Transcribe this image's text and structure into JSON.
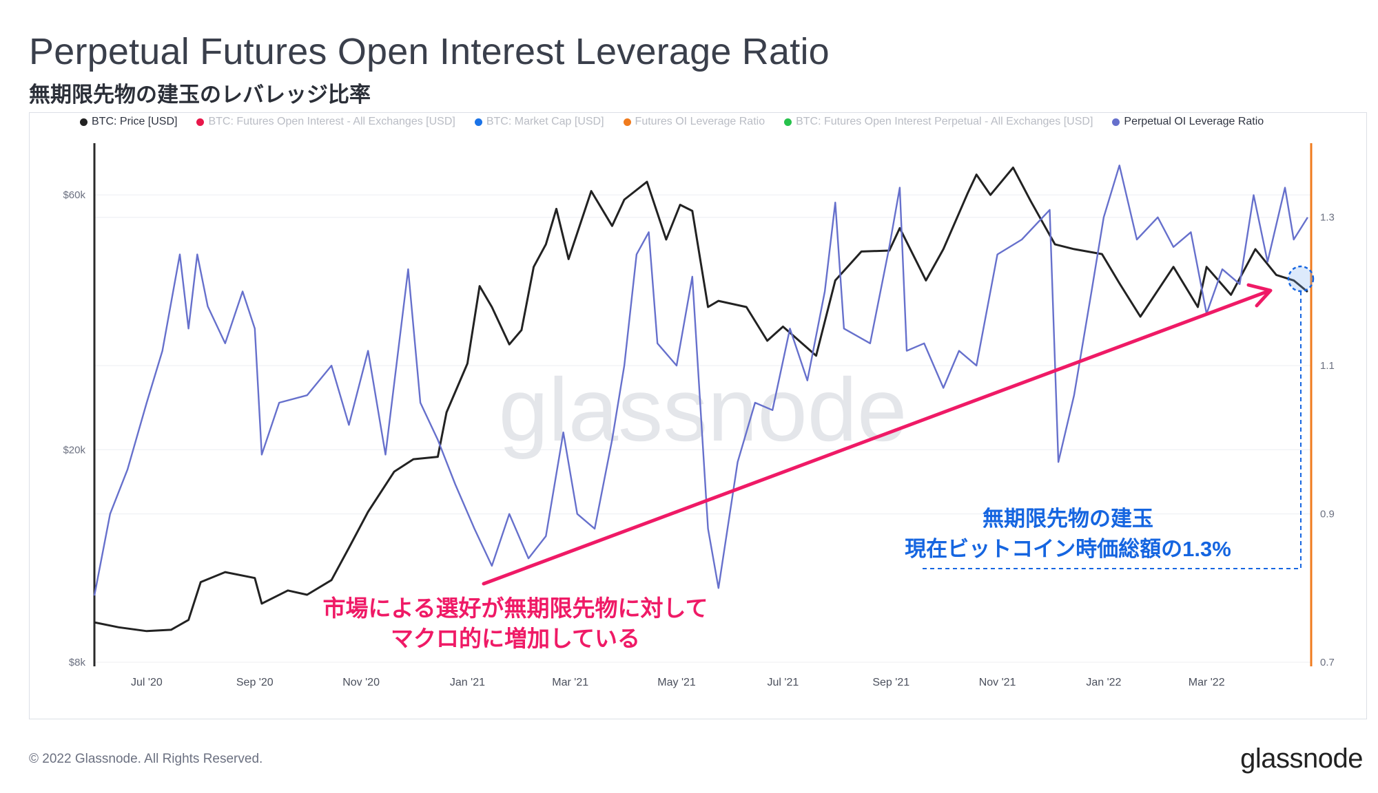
{
  "header": {
    "title": "Perpetual Futures Open Interest Leverage Ratio",
    "subtitle": "無期限先物の建玉のレバレッジ比率"
  },
  "legend": [
    {
      "label": "BTC: Price [USD]",
      "color": "#222222",
      "active": true
    },
    {
      "label": "BTC: Futures Open Interest - All Exchanges [USD]",
      "color": "#e8174a",
      "active": false
    },
    {
      "label": "BTC: Market Cap [USD]",
      "color": "#1a73e8",
      "active": false
    },
    {
      "label": "Futures OI Leverage Ratio",
      "color": "#f07b1d",
      "active": false
    },
    {
      "label": "BTC: Futures Open Interest Perpetual - All Exchanges [USD]",
      "color": "#27c24c",
      "active": false
    },
    {
      "label": "Perpetual OI Leverage Ratio",
      "color": "#6670cc",
      "active": true
    }
  ],
  "annotations": {
    "pink": [
      "市場による選好が無期限先物に対して",
      "マクロ的に増加している"
    ],
    "blue": [
      "無期限先物の建玉",
      "現在ビットコイン時価総額の1.3%"
    ],
    "pink_color": "#ef1a66",
    "blue_color": "#1565e0"
  },
  "footer": {
    "copyright": "© 2022 Glassnode. All Rights Reserved.",
    "logo": "glassnode",
    "watermark": "glassnode"
  },
  "chart_data": {
    "type": "line",
    "x_range": [
      "2020-06-01",
      "2022-04-30"
    ],
    "x_ticks": [
      {
        "date": "2020-07-01",
        "label": "Jul '20"
      },
      {
        "date": "2020-09-01",
        "label": "Sep '20"
      },
      {
        "date": "2020-11-01",
        "label": "Nov '20"
      },
      {
        "date": "2021-01-01",
        "label": "Jan '21"
      },
      {
        "date": "2021-03-01",
        "label": "Mar '21"
      },
      {
        "date": "2021-05-01",
        "label": "May '21"
      },
      {
        "date": "2021-07-01",
        "label": "Jul '21"
      },
      {
        "date": "2021-09-01",
        "label": "Sep '21"
      },
      {
        "date": "2021-11-01",
        "label": "Nov '21"
      },
      {
        "date": "2022-01-01",
        "label": "Jan '22"
      },
      {
        "date": "2022-03-01",
        "label": "Mar '22"
      }
    ],
    "y_left": {
      "scale": "log",
      "range": [
        8000,
        75000
      ],
      "ticks": [
        {
          "v": 8000,
          "label": "$8k"
        },
        {
          "v": 20000,
          "label": "$20k"
        },
        {
          "v": 60000,
          "label": "$60k"
        }
      ]
    },
    "y_right": {
      "scale": "linear",
      "range": [
        0.7,
        1.4
      ],
      "ticks": [
        {
          "v": 0.7,
          "label": "0.7"
        },
        {
          "v": 0.9,
          "label": "0.9"
        },
        {
          "v": 1.1,
          "label": "1.1"
        },
        {
          "v": 1.3,
          "label": "1.3"
        }
      ]
    },
    "grid": true,
    "series": [
      {
        "name": "BTC: Price [USD]",
        "axis": "left",
        "color": "#222222",
        "points": [
          [
            "2020-06-01",
            9500
          ],
          [
            "2020-06-15",
            9300
          ],
          [
            "2020-07-01",
            9150
          ],
          [
            "2020-07-15",
            9200
          ],
          [
            "2020-07-25",
            9600
          ],
          [
            "2020-08-01",
            11300
          ],
          [
            "2020-08-15",
            11800
          ],
          [
            "2020-09-01",
            11500
          ],
          [
            "2020-09-05",
            10300
          ],
          [
            "2020-09-20",
            10900
          ],
          [
            "2020-10-01",
            10700
          ],
          [
            "2020-10-15",
            11400
          ],
          [
            "2020-10-25",
            13100
          ],
          [
            "2020-11-05",
            15300
          ],
          [
            "2020-11-20",
            18200
          ],
          [
            "2020-12-01",
            19200
          ],
          [
            "2020-12-15",
            19400
          ],
          [
            "2020-12-20",
            23500
          ],
          [
            "2021-01-01",
            29000
          ],
          [
            "2021-01-08",
            40500
          ],
          [
            "2021-01-15",
            37000
          ],
          [
            "2021-01-25",
            31500
          ],
          [
            "2021-02-01",
            33500
          ],
          [
            "2021-02-08",
            44000
          ],
          [
            "2021-02-15",
            48500
          ],
          [
            "2021-02-21",
            56500
          ],
          [
            "2021-02-28",
            45500
          ],
          [
            "2021-03-13",
            61000
          ],
          [
            "2021-03-25",
            52500
          ],
          [
            "2021-04-01",
            58800
          ],
          [
            "2021-04-14",
            63500
          ],
          [
            "2021-04-25",
            49500
          ],
          [
            "2021-05-03",
            57500
          ],
          [
            "2021-05-10",
            56000
          ],
          [
            "2021-05-19",
            37000
          ],
          [
            "2021-05-25",
            38000
          ],
          [
            "2021-06-10",
            37000
          ],
          [
            "2021-06-22",
            32000
          ],
          [
            "2021-07-01",
            34000
          ],
          [
            "2021-07-20",
            30000
          ],
          [
            "2021-07-31",
            41500
          ],
          [
            "2021-08-15",
            47000
          ],
          [
            "2021-08-31",
            47200
          ],
          [
            "2021-09-06",
            52000
          ],
          [
            "2021-09-21",
            41500
          ],
          [
            "2021-10-01",
            47500
          ],
          [
            "2021-10-15",
            60500
          ],
          [
            "2021-10-20",
            65500
          ],
          [
            "2021-10-28",
            60000
          ],
          [
            "2021-11-10",
            67500
          ],
          [
            "2021-11-20",
            58500
          ],
          [
            "2021-12-04",
            48500
          ],
          [
            "2021-12-15",
            47500
          ],
          [
            "2021-12-31",
            46500
          ],
          [
            "2022-01-10",
            41000
          ],
          [
            "2022-01-22",
            35500
          ],
          [
            "2022-02-10",
            44000
          ],
          [
            "2022-02-24",
            37000
          ],
          [
            "2022-03-01",
            44000
          ],
          [
            "2022-03-15",
            39000
          ],
          [
            "2022-03-29",
            47500
          ],
          [
            "2022-04-10",
            42500
          ],
          [
            "2022-04-20",
            41500
          ],
          [
            "2022-04-28",
            39500
          ]
        ]
      },
      {
        "name": "Perpetual OI Leverage Ratio",
        "axis": "right",
        "color": "#6670cc",
        "points": [
          [
            "2020-06-01",
            0.79
          ],
          [
            "2020-06-10",
            0.9
          ],
          [
            "2020-06-20",
            0.96
          ],
          [
            "2020-07-01",
            1.05
          ],
          [
            "2020-07-10",
            1.12
          ],
          [
            "2020-07-20",
            1.25
          ],
          [
            "2020-07-25",
            1.15
          ],
          [
            "2020-07-30",
            1.25
          ],
          [
            "2020-08-05",
            1.18
          ],
          [
            "2020-08-15",
            1.13
          ],
          [
            "2020-08-25",
            1.2
          ],
          [
            "2020-09-01",
            1.15
          ],
          [
            "2020-09-05",
            0.98
          ],
          [
            "2020-09-15",
            1.05
          ],
          [
            "2020-10-01",
            1.06
          ],
          [
            "2020-10-15",
            1.1
          ],
          [
            "2020-10-25",
            1.02
          ],
          [
            "2020-11-05",
            1.12
          ],
          [
            "2020-11-15",
            0.98
          ],
          [
            "2020-11-28",
            1.23
          ],
          [
            "2020-12-05",
            1.05
          ],
          [
            "2020-12-15",
            1.0
          ],
          [
            "2020-12-25",
            0.94
          ],
          [
            "2021-01-05",
            0.88
          ],
          [
            "2021-01-15",
            0.83
          ],
          [
            "2021-01-25",
            0.9
          ],
          [
            "2021-02-05",
            0.84
          ],
          [
            "2021-02-15",
            0.87
          ],
          [
            "2021-02-25",
            1.01
          ],
          [
            "2021-03-05",
            0.9
          ],
          [
            "2021-03-15",
            0.88
          ],
          [
            "2021-03-25",
            1.0
          ],
          [
            "2021-04-01",
            1.1
          ],
          [
            "2021-04-08",
            1.25
          ],
          [
            "2021-04-15",
            1.28
          ],
          [
            "2021-04-20",
            1.13
          ],
          [
            "2021-05-01",
            1.1
          ],
          [
            "2021-05-10",
            1.22
          ],
          [
            "2021-05-19",
            0.88
          ],
          [
            "2021-05-25",
            0.8
          ],
          [
            "2021-06-05",
            0.97
          ],
          [
            "2021-06-15",
            1.05
          ],
          [
            "2021-06-25",
            1.04
          ],
          [
            "2021-07-05",
            1.15
          ],
          [
            "2021-07-15",
            1.08
          ],
          [
            "2021-07-25",
            1.2
          ],
          [
            "2021-07-31",
            1.32
          ],
          [
            "2021-08-05",
            1.15
          ],
          [
            "2021-08-20",
            1.13
          ],
          [
            "2021-08-31",
            1.26
          ],
          [
            "2021-09-06",
            1.34
          ],
          [
            "2021-09-10",
            1.12
          ],
          [
            "2021-09-20",
            1.13
          ],
          [
            "2021-10-01",
            1.07
          ],
          [
            "2021-10-10",
            1.12
          ],
          [
            "2021-10-20",
            1.1
          ],
          [
            "2021-11-01",
            1.25
          ],
          [
            "2021-11-15",
            1.27
          ],
          [
            "2021-12-01",
            1.31
          ],
          [
            "2021-12-06",
            0.97
          ],
          [
            "2021-12-15",
            1.06
          ],
          [
            "2021-12-25",
            1.2
          ],
          [
            "2022-01-01",
            1.3
          ],
          [
            "2022-01-10",
            1.37
          ],
          [
            "2022-01-20",
            1.27
          ],
          [
            "2022-02-01",
            1.3
          ],
          [
            "2022-02-10",
            1.26
          ],
          [
            "2022-02-20",
            1.28
          ],
          [
            "2022-03-01",
            1.17
          ],
          [
            "2022-03-10",
            1.23
          ],
          [
            "2022-03-20",
            1.21
          ],
          [
            "2022-03-28",
            1.33
          ],
          [
            "2022-04-05",
            1.24
          ],
          [
            "2022-04-15",
            1.34
          ],
          [
            "2022-04-20",
            1.27
          ],
          [
            "2022-04-28",
            1.3
          ]
        ]
      }
    ]
  }
}
